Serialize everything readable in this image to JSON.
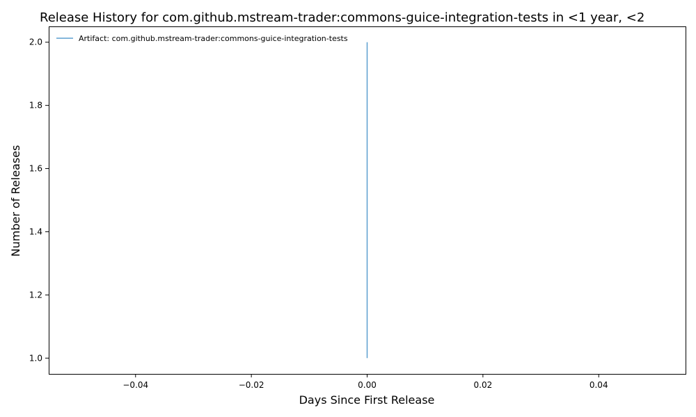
{
  "chart_data": {
    "type": "line",
    "title": "Release History for com.github.mstream-trader:commons-guice-integration-tests in <1 year, <2",
    "xlabel": "Days Since First Release",
    "ylabel": "Number of Releases",
    "xlim": [
      -0.055,
      0.055
    ],
    "ylim": [
      0.95,
      2.05
    ],
    "x_ticks": [
      -0.04,
      -0.02,
      0.0,
      0.02,
      0.04
    ],
    "x_tick_labels": [
      "−0.04",
      "−0.02",
      "0.00",
      "0.02",
      "0.04"
    ],
    "y_ticks": [
      1.0,
      1.2,
      1.4,
      1.6,
      1.8,
      2.0
    ],
    "y_tick_labels": [
      "1.0",
      "1.2",
      "1.4",
      "1.6",
      "1.8",
      "2.0"
    ],
    "grid": false,
    "legend_position": "top-left",
    "series": [
      {
        "name": "Artifact: com.github.mstream-trader:commons-guice-integration-tests",
        "color": "#5b9fcf",
        "x": [
          0,
          0
        ],
        "y": [
          1,
          2
        ]
      }
    ]
  }
}
